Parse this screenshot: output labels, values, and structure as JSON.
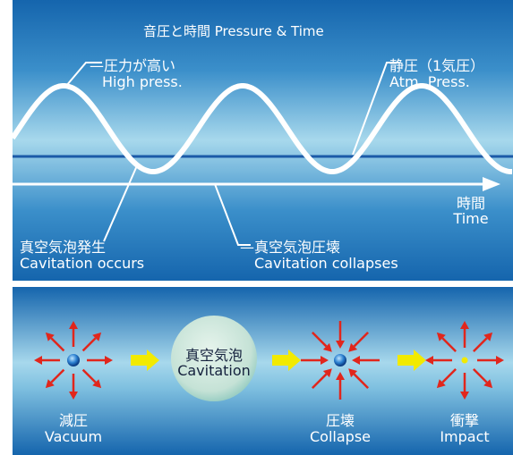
{
  "top": {
    "title": "音圧と時間 Pressure & Time",
    "high_press_jp": "—圧力が高い",
    "high_press_en": "High press.",
    "static_press_jp": "静圧（1気圧）",
    "static_press_en": "Atm. Press.",
    "time_jp": "時間",
    "time_en": "Time",
    "occurs_jp": "真空気泡発生",
    "occurs_en": "Cavitation occurs",
    "collapse_jp": "—真空気泡圧壊",
    "collapse_en": "Cavitation  collapses"
  },
  "bottom": {
    "vacuum_jp": "減圧",
    "vacuum_en": "Vacuum",
    "bubble_jp": "真空気泡",
    "bubble_en": "Cavitation",
    "collapse_jp": "圧壊",
    "collapse_en": "Collapse",
    "impact_jp": "衝撃",
    "impact_en": "Impact"
  },
  "colors": {
    "panel_dark": "#1565ad",
    "panel_light": "#9fd4ea",
    "baseline": "#1b5aa8",
    "arrow_red": "#e1261c",
    "arrow_yellow": "#f2ea00",
    "bubble": "#cfe8dc"
  }
}
